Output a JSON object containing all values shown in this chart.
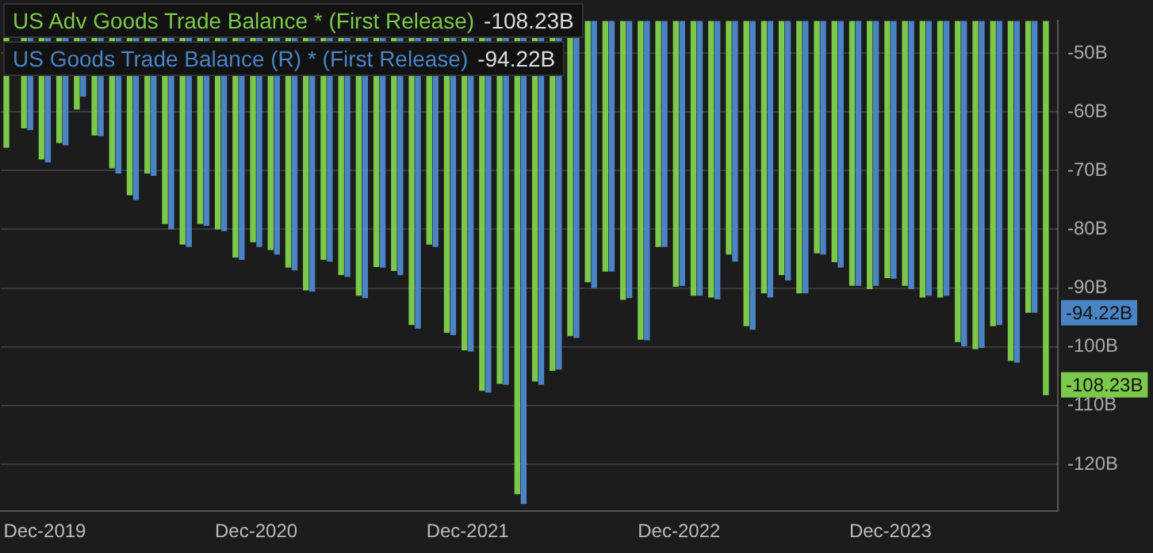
{
  "chart_data": {
    "type": "bar",
    "categories": [
      null,
      null,
      "Dec-2019",
      null,
      null,
      null,
      null,
      null,
      null,
      null,
      null,
      null,
      null,
      null,
      "Dec-2020",
      null,
      null,
      null,
      null,
      null,
      null,
      null,
      null,
      null,
      null,
      null,
      "Dec-2021",
      null,
      null,
      null,
      null,
      null,
      null,
      null,
      null,
      null,
      null,
      null,
      "Dec-2022",
      null,
      null,
      null,
      null,
      null,
      null,
      null,
      null,
      null,
      null,
      null,
      "Dec-2023",
      null,
      null,
      null,
      null,
      null,
      null,
      null,
      null,
      null
    ],
    "series": [
      {
        "name": "US Adv Goods Trade Balance * (First Release)",
        "color": "#7bc94a",
        "values": [
          -66.1,
          -62.8,
          -68.1,
          -65.3,
          -59.6,
          -64.0,
          -69.6,
          -74.2,
          -70.5,
          -79.1,
          -82.6,
          -79.1,
          -80.0,
          -84.8,
          -82.2,
          -83.5,
          -86.5,
          -90.4,
          -85.2,
          -87.8,
          -91.3,
          -86.4,
          -87.1,
          -96.3,
          -82.6,
          -97.6,
          -100.6,
          -107.5,
          -106.3,
          -125.1,
          -105.9,
          -104.1,
          -98.2,
          -89.0,
          -87.2,
          -92.0,
          -98.8,
          -83.0,
          -89.8,
          -91.3,
          -91.6,
          -84.3,
          -96.5,
          -90.9,
          -87.8,
          -90.9,
          -84.1,
          -85.6,
          -89.6,
          -90.2,
          -88.3,
          -89.6,
          -91.6,
          -91.6,
          -99.2,
          -100.4,
          -96.5,
          -102.4,
          -94.2,
          -108.23
        ]
      },
      {
        "name": "US Goods Trade Balance (R) * (First Release)",
        "color": "#4a84c4",
        "values": [
          null,
          -63.1,
          -68.6,
          -65.7,
          -57.4,
          -64.1,
          -70.5,
          -75.0,
          -70.9,
          -80.0,
          -83.0,
          -79.4,
          -80.3,
          -85.2,
          -83.0,
          -84.3,
          -87.0,
          -90.6,
          -85.5,
          -88.1,
          -91.7,
          -86.5,
          -87.8,
          -96.9,
          -83.0,
          -98.0,
          -100.8,
          -107.8,
          -106.5,
          -126.8,
          -106.5,
          -103.9,
          -98.5,
          -90.0,
          -87.2,
          -91.7,
          -98.9,
          -83.0,
          -89.6,
          -91.3,
          -91.9,
          -85.5,
          -97.1,
          -91.6,
          -88.7,
          -90.9,
          -84.3,
          -86.5,
          -89.6,
          -89.6,
          -88.4,
          -90.2,
          -91.3,
          -91.3,
          -99.9,
          -100.2,
          -96.3,
          -102.7,
          -94.22,
          null
        ]
      }
    ],
    "ylim": [
      -128,
      -44.5
    ],
    "yticks": [
      {
        "value": -50,
        "label": "-50B"
      },
      {
        "value": -60,
        "label": "-60B"
      },
      {
        "value": -70,
        "label": "-70B"
      },
      {
        "value": -80,
        "label": "-80B"
      },
      {
        "value": -90,
        "label": "-90B"
      },
      {
        "value": -100,
        "label": "-100B"
      },
      {
        "value": -110,
        "label": "-110B"
      },
      {
        "value": -120,
        "label": "-120B"
      }
    ],
    "annotations": [
      "-108.23B",
      "-94.22B"
    ],
    "grid": "y",
    "legend": "top left"
  }
}
